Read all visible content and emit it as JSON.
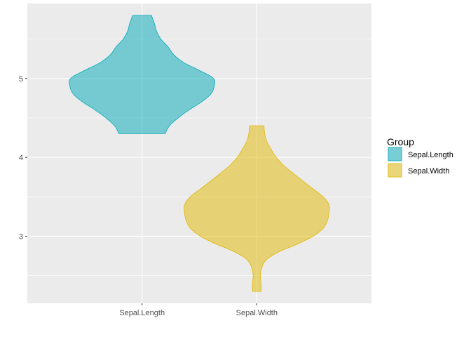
{
  "chart_data": {
    "type": "violin",
    "title": "",
    "xlabel": "",
    "ylabel": "",
    "categories": [
      "Sepal.Length",
      "Sepal.Width"
    ],
    "ylim": [
      2.15,
      5.95
    ],
    "y_ticks": [
      3,
      4,
      5
    ],
    "y_minor_ticks": [
      2.5,
      3.5,
      4.5,
      5.5
    ],
    "grid": true,
    "legend": {
      "title": "Group",
      "position": "right",
      "entries": [
        {
          "label": "Sepal.Length",
          "color": "#00A9B8"
        },
        {
          "label": "Sepal.Width",
          "color": "#E1B800"
        }
      ]
    },
    "series": [
      {
        "name": "Sepal.Length",
        "color": "#00A9B8",
        "y_min": 4.3,
        "y_max": 5.8,
        "density_profile": [
          [
            4.3,
            0.32
          ],
          [
            4.4,
            0.38
          ],
          [
            4.5,
            0.5
          ],
          [
            4.6,
            0.65
          ],
          [
            4.7,
            0.82
          ],
          [
            4.8,
            0.95
          ],
          [
            4.9,
            1.0
          ],
          [
            5.0,
            0.99
          ],
          [
            5.1,
            0.8
          ],
          [
            5.2,
            0.58
          ],
          [
            5.3,
            0.44
          ],
          [
            5.4,
            0.36
          ],
          [
            5.5,
            0.26
          ],
          [
            5.6,
            0.2
          ],
          [
            5.7,
            0.17
          ],
          [
            5.8,
            0.13
          ]
        ]
      },
      {
        "name": "Sepal.Width",
        "color": "#E1B800",
        "y_min": 2.3,
        "y_max": 4.4,
        "density_profile": [
          [
            2.3,
            0.06
          ],
          [
            2.4,
            0.06
          ],
          [
            2.5,
            0.05
          ],
          [
            2.6,
            0.07
          ],
          [
            2.7,
            0.13
          ],
          [
            2.8,
            0.3
          ],
          [
            2.9,
            0.56
          ],
          [
            3.0,
            0.78
          ],
          [
            3.1,
            0.92
          ],
          [
            3.2,
            0.98
          ],
          [
            3.3,
            1.0
          ],
          [
            3.4,
            1.0
          ],
          [
            3.5,
            0.92
          ],
          [
            3.6,
            0.78
          ],
          [
            3.7,
            0.64
          ],
          [
            3.8,
            0.5
          ],
          [
            3.9,
            0.37
          ],
          [
            4.0,
            0.27
          ],
          [
            4.1,
            0.2
          ],
          [
            4.2,
            0.14
          ],
          [
            4.3,
            0.11
          ],
          [
            4.4,
            0.1
          ]
        ]
      }
    ]
  }
}
